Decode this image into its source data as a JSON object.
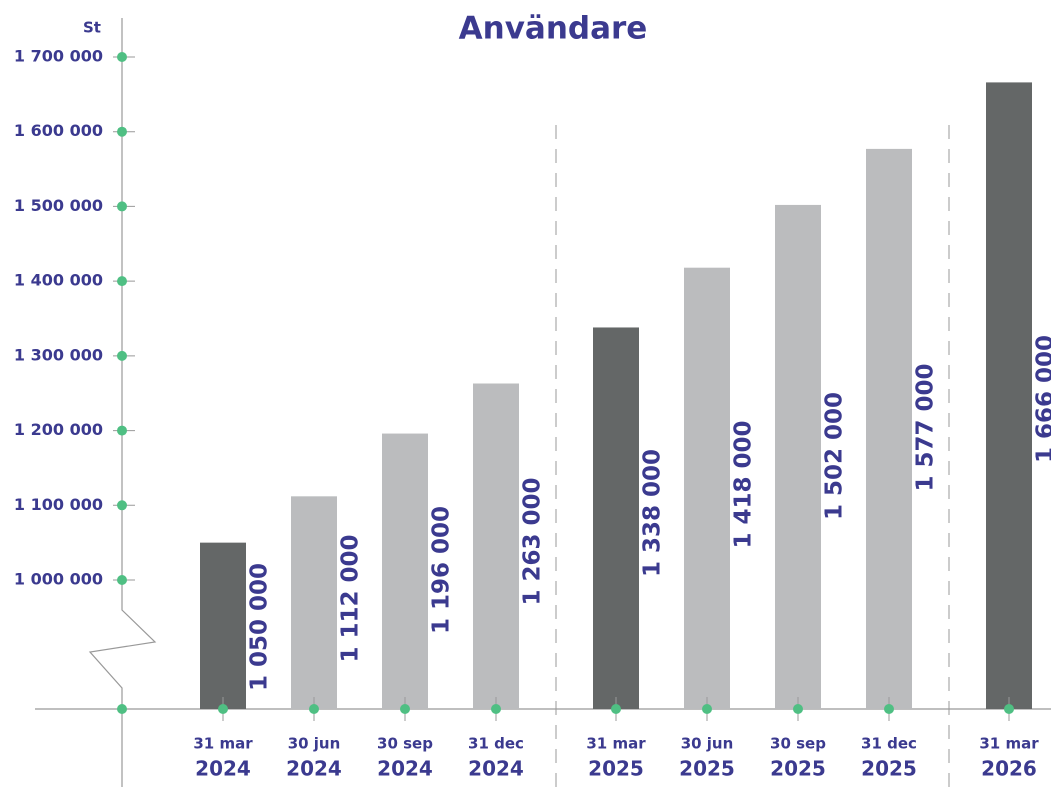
{
  "chart_data": {
    "type": "bar",
    "title": "Användare",
    "y_unit": "St",
    "categories": [
      [
        "31 mar",
        "2024"
      ],
      [
        "30 jun",
        "2024"
      ],
      [
        "30 sep",
        "2024"
      ],
      [
        "31 dec",
        "2024"
      ],
      [
        "31 mar",
        "2025"
      ],
      [
        "30 jun",
        "2025"
      ],
      [
        "30 sep",
        "2025"
      ],
      [
        "31 dec",
        "2025"
      ],
      [
        "31 mar",
        "2026"
      ]
    ],
    "values": [
      1050000,
      1112000,
      1196000,
      1263000,
      1338000,
      1418000,
      1502000,
      1577000,
      1666000
    ],
    "value_labels": [
      "1 050 000",
      "1 112 000",
      "1 196 000",
      "1 263 000",
      "1 338 000",
      "1 418 000",
      "1 502 000",
      "1 577 000",
      "1 666 000"
    ],
    "colors": [
      "#646767",
      "#bbbcbe",
      "#bbbcbe",
      "#bbbcbe",
      "#646767",
      "#bbbcbe",
      "#bbbcbe",
      "#bbbcbe",
      "#646767"
    ],
    "ylim": [
      1000000,
      1700000
    ],
    "yticks": [
      {
        "value": 1000000,
        "label": "1 000 000"
      },
      {
        "value": 1100000,
        "label": "1 100 000"
      },
      {
        "value": 1200000,
        "label": "1 200 000"
      },
      {
        "value": 1300000,
        "label": "1 300 000"
      },
      {
        "value": 1400000,
        "label": "1 400 000"
      },
      {
        "value": 1500000,
        "label": "1 500 000"
      },
      {
        "value": 1600000,
        "label": "1 600 000"
      },
      {
        "value": 1700000,
        "label": "1 700 000"
      }
    ],
    "broken_axis": true
  }
}
